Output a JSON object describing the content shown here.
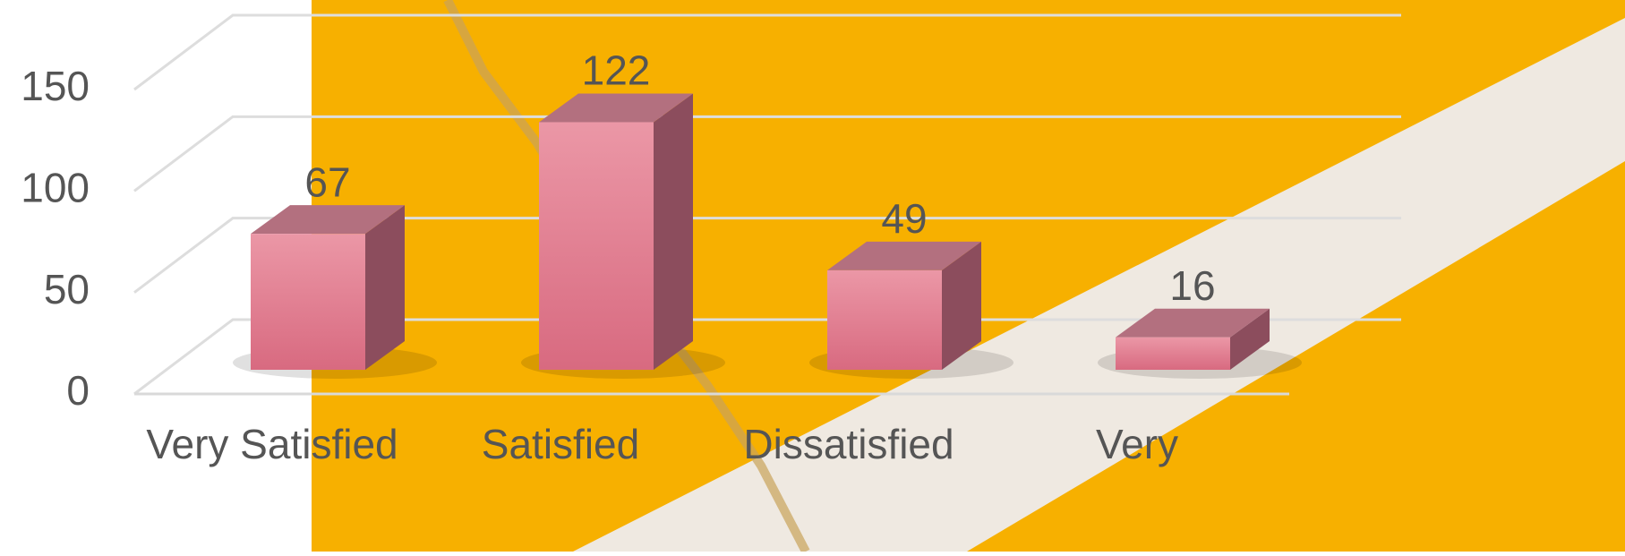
{
  "chart_data": {
    "type": "bar3d",
    "categories": [
      "Very Satisfied",
      "Satisfied",
      "Dissatisfied",
      "Very"
    ],
    "values": [
      67,
      122,
      49,
      16
    ],
    "color": "#e07a8f",
    "ylim": [
      0,
      150
    ],
    "yticks": [
      0,
      50,
      100,
      150
    ],
    "grid": true
  }
}
